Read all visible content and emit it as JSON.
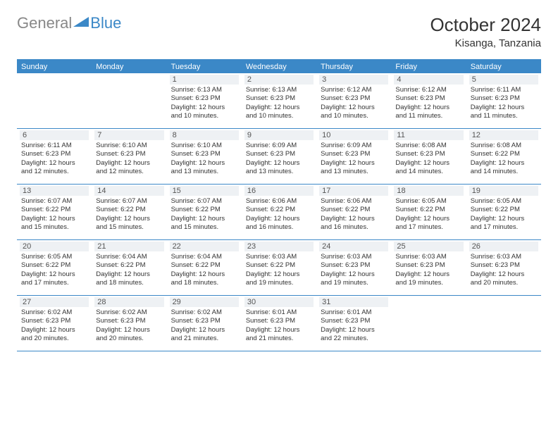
{
  "brand": {
    "part1": "General",
    "part2": "Blue"
  },
  "title": "October 2024",
  "location": "Kisanga, Tanzania",
  "colors": {
    "header_bar": "#3b88c7",
    "daynum_bg": "#eef1f4",
    "text": "#333333",
    "logo_gray": "#888888",
    "logo_blue": "#3b88c7"
  },
  "dayNames": [
    "Sunday",
    "Monday",
    "Tuesday",
    "Wednesday",
    "Thursday",
    "Friday",
    "Saturday"
  ],
  "weeks": [
    [
      null,
      null,
      {
        "n": "1",
        "sr": "Sunrise: 6:13 AM",
        "ss": "Sunset: 6:23 PM",
        "d1": "Daylight: 12 hours",
        "d2": "and 10 minutes."
      },
      {
        "n": "2",
        "sr": "Sunrise: 6:13 AM",
        "ss": "Sunset: 6:23 PM",
        "d1": "Daylight: 12 hours",
        "d2": "and 10 minutes."
      },
      {
        "n": "3",
        "sr": "Sunrise: 6:12 AM",
        "ss": "Sunset: 6:23 PM",
        "d1": "Daylight: 12 hours",
        "d2": "and 10 minutes."
      },
      {
        "n": "4",
        "sr": "Sunrise: 6:12 AM",
        "ss": "Sunset: 6:23 PM",
        "d1": "Daylight: 12 hours",
        "d2": "and 11 minutes."
      },
      {
        "n": "5",
        "sr": "Sunrise: 6:11 AM",
        "ss": "Sunset: 6:23 PM",
        "d1": "Daylight: 12 hours",
        "d2": "and 11 minutes."
      }
    ],
    [
      {
        "n": "6",
        "sr": "Sunrise: 6:11 AM",
        "ss": "Sunset: 6:23 PM",
        "d1": "Daylight: 12 hours",
        "d2": "and 12 minutes."
      },
      {
        "n": "7",
        "sr": "Sunrise: 6:10 AM",
        "ss": "Sunset: 6:23 PM",
        "d1": "Daylight: 12 hours",
        "d2": "and 12 minutes."
      },
      {
        "n": "8",
        "sr": "Sunrise: 6:10 AM",
        "ss": "Sunset: 6:23 PM",
        "d1": "Daylight: 12 hours",
        "d2": "and 13 minutes."
      },
      {
        "n": "9",
        "sr": "Sunrise: 6:09 AM",
        "ss": "Sunset: 6:23 PM",
        "d1": "Daylight: 12 hours",
        "d2": "and 13 minutes."
      },
      {
        "n": "10",
        "sr": "Sunrise: 6:09 AM",
        "ss": "Sunset: 6:23 PM",
        "d1": "Daylight: 12 hours",
        "d2": "and 13 minutes."
      },
      {
        "n": "11",
        "sr": "Sunrise: 6:08 AM",
        "ss": "Sunset: 6:23 PM",
        "d1": "Daylight: 12 hours",
        "d2": "and 14 minutes."
      },
      {
        "n": "12",
        "sr": "Sunrise: 6:08 AM",
        "ss": "Sunset: 6:22 PM",
        "d1": "Daylight: 12 hours",
        "d2": "and 14 minutes."
      }
    ],
    [
      {
        "n": "13",
        "sr": "Sunrise: 6:07 AM",
        "ss": "Sunset: 6:22 PM",
        "d1": "Daylight: 12 hours",
        "d2": "and 15 minutes."
      },
      {
        "n": "14",
        "sr": "Sunrise: 6:07 AM",
        "ss": "Sunset: 6:22 PM",
        "d1": "Daylight: 12 hours",
        "d2": "and 15 minutes."
      },
      {
        "n": "15",
        "sr": "Sunrise: 6:07 AM",
        "ss": "Sunset: 6:22 PM",
        "d1": "Daylight: 12 hours",
        "d2": "and 15 minutes."
      },
      {
        "n": "16",
        "sr": "Sunrise: 6:06 AM",
        "ss": "Sunset: 6:22 PM",
        "d1": "Daylight: 12 hours",
        "d2": "and 16 minutes."
      },
      {
        "n": "17",
        "sr": "Sunrise: 6:06 AM",
        "ss": "Sunset: 6:22 PM",
        "d1": "Daylight: 12 hours",
        "d2": "and 16 minutes."
      },
      {
        "n": "18",
        "sr": "Sunrise: 6:05 AM",
        "ss": "Sunset: 6:22 PM",
        "d1": "Daylight: 12 hours",
        "d2": "and 17 minutes."
      },
      {
        "n": "19",
        "sr": "Sunrise: 6:05 AM",
        "ss": "Sunset: 6:22 PM",
        "d1": "Daylight: 12 hours",
        "d2": "and 17 minutes."
      }
    ],
    [
      {
        "n": "20",
        "sr": "Sunrise: 6:05 AM",
        "ss": "Sunset: 6:22 PM",
        "d1": "Daylight: 12 hours",
        "d2": "and 17 minutes."
      },
      {
        "n": "21",
        "sr": "Sunrise: 6:04 AM",
        "ss": "Sunset: 6:22 PM",
        "d1": "Daylight: 12 hours",
        "d2": "and 18 minutes."
      },
      {
        "n": "22",
        "sr": "Sunrise: 6:04 AM",
        "ss": "Sunset: 6:22 PM",
        "d1": "Daylight: 12 hours",
        "d2": "and 18 minutes."
      },
      {
        "n": "23",
        "sr": "Sunrise: 6:03 AM",
        "ss": "Sunset: 6:22 PM",
        "d1": "Daylight: 12 hours",
        "d2": "and 19 minutes."
      },
      {
        "n": "24",
        "sr": "Sunrise: 6:03 AM",
        "ss": "Sunset: 6:23 PM",
        "d1": "Daylight: 12 hours",
        "d2": "and 19 minutes."
      },
      {
        "n": "25",
        "sr": "Sunrise: 6:03 AM",
        "ss": "Sunset: 6:23 PM",
        "d1": "Daylight: 12 hours",
        "d2": "and 19 minutes."
      },
      {
        "n": "26",
        "sr": "Sunrise: 6:03 AM",
        "ss": "Sunset: 6:23 PM",
        "d1": "Daylight: 12 hours",
        "d2": "and 20 minutes."
      }
    ],
    [
      {
        "n": "27",
        "sr": "Sunrise: 6:02 AM",
        "ss": "Sunset: 6:23 PM",
        "d1": "Daylight: 12 hours",
        "d2": "and 20 minutes."
      },
      {
        "n": "28",
        "sr": "Sunrise: 6:02 AM",
        "ss": "Sunset: 6:23 PM",
        "d1": "Daylight: 12 hours",
        "d2": "and 20 minutes."
      },
      {
        "n": "29",
        "sr": "Sunrise: 6:02 AM",
        "ss": "Sunset: 6:23 PM",
        "d1": "Daylight: 12 hours",
        "d2": "and 21 minutes."
      },
      {
        "n": "30",
        "sr": "Sunrise: 6:01 AM",
        "ss": "Sunset: 6:23 PM",
        "d1": "Daylight: 12 hours",
        "d2": "and 21 minutes."
      },
      {
        "n": "31",
        "sr": "Sunrise: 6:01 AM",
        "ss": "Sunset: 6:23 PM",
        "d1": "Daylight: 12 hours",
        "d2": "and 22 minutes."
      },
      null,
      null
    ]
  ]
}
